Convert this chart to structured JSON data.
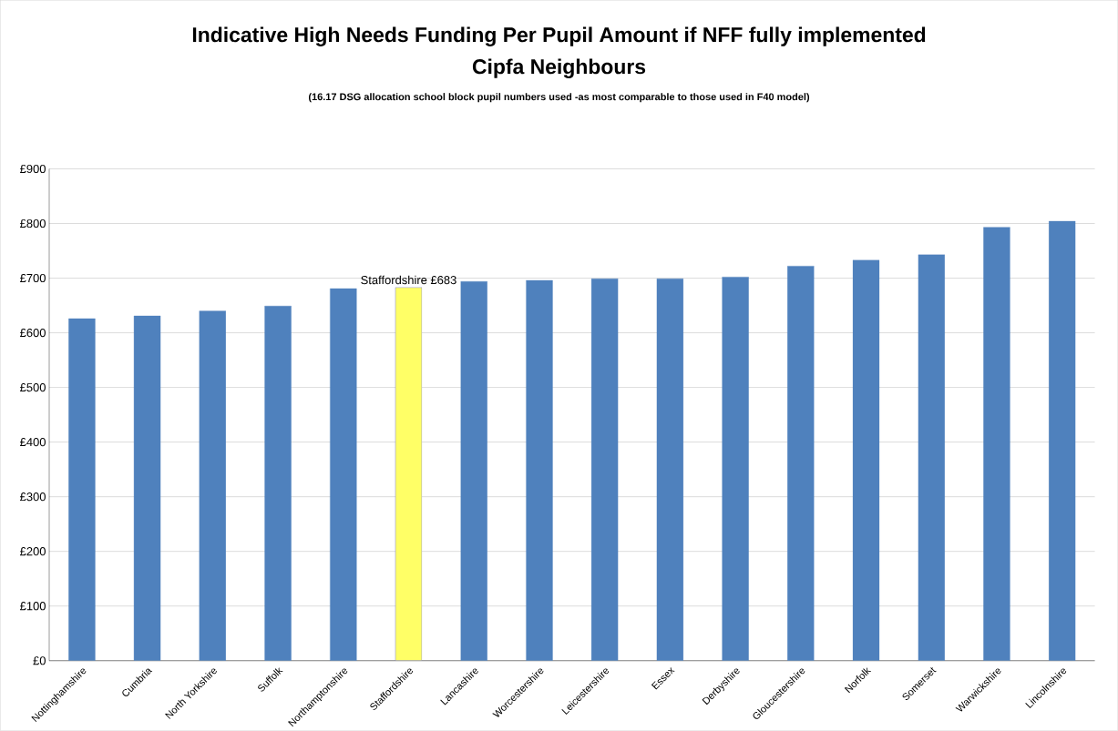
{
  "chart_data": {
    "type": "bar",
    "title": "Indicative High Needs Funding Per Pupil Amount if NFF fully implemented",
    "subtitle": "Cipfa Neighbours",
    "annotations": [
      "(16.17 DSG allocation school block pupil numbers used -as most comparable to those used in F40 model)",
      {
        "text": "Staffordshire £683",
        "x": "Staffordshire",
        "y": 683
      }
    ],
    "categories": [
      "Nottinghamshire",
      "Cumbria",
      "North Yorkshire",
      "Suffolk",
      "Northamptonshire",
      "Staffordshire",
      "Lancashire",
      "Worcestershire",
      "Leicestershire",
      "Essex",
      "Derbyshire",
      "Gloucestershire",
      "Norfolk",
      "Somerset",
      "Warwickshire",
      "Lincolnshire"
    ],
    "values": [
      626,
      631,
      640,
      649,
      681,
      683,
      694,
      696,
      699,
      699,
      702,
      722,
      733,
      743,
      793,
      804
    ],
    "colors": [
      "#4f81bd",
      "#4f81bd",
      "#4f81bd",
      "#4f81bd",
      "#4f81bd",
      "#ffff66",
      "#4f81bd",
      "#4f81bd",
      "#4f81bd",
      "#4f81bd",
      "#4f81bd",
      "#4f81bd",
      "#4f81bd",
      "#4f81bd",
      "#4f81bd",
      "#4f81bd"
    ],
    "ylim": [
      0,
      900
    ],
    "yticks": [
      {
        "value": 0,
        "label": "£0"
      },
      {
        "value": 100,
        "label": "£100"
      },
      {
        "value": 200,
        "label": "£200"
      },
      {
        "value": 300,
        "label": "£300"
      },
      {
        "value": 400,
        "label": "£400"
      },
      {
        "value": 500,
        "label": "£500"
      },
      {
        "value": 600,
        "label": "£600"
      },
      {
        "value": 700,
        "label": "£700"
      },
      {
        "value": 800,
        "label": "£800"
      },
      {
        "value": 900,
        "label": "£900"
      }
    ],
    "grid": "y"
  }
}
